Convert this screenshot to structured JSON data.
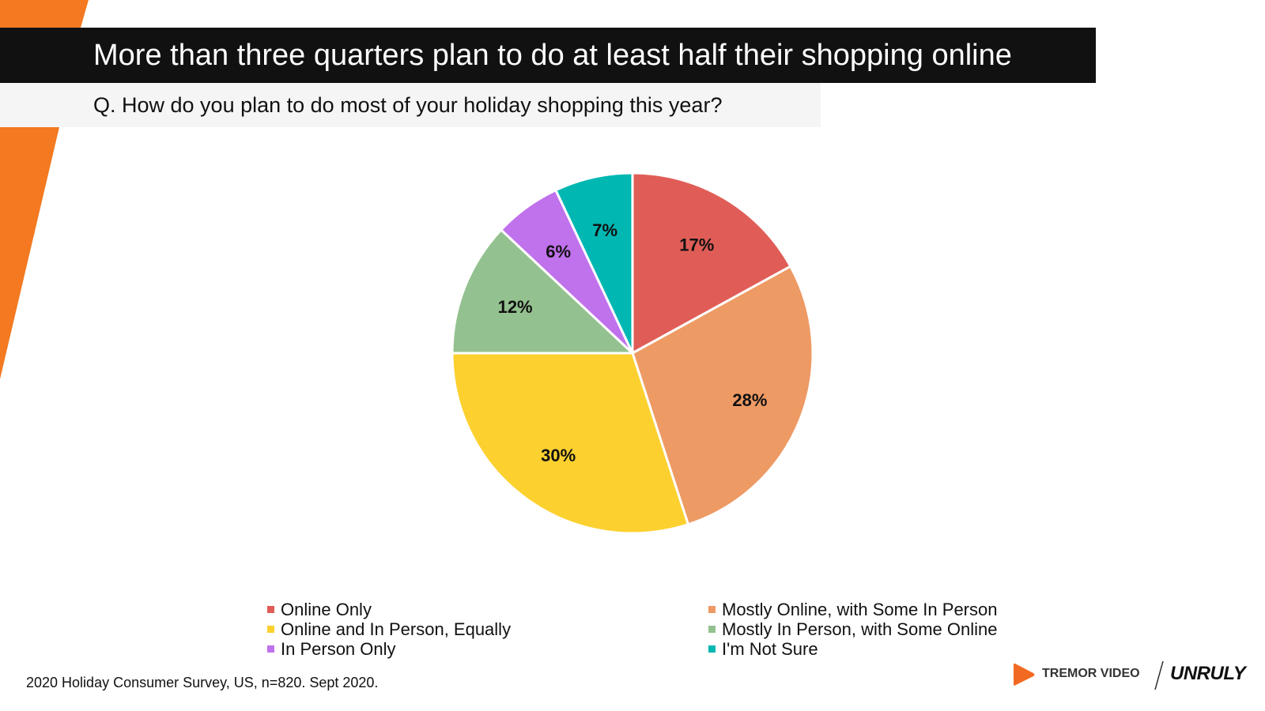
{
  "header": {
    "title": "More than three quarters plan to do at least half their shopping online",
    "subtitle": "Q. How do you plan to do most of your holiday shopping this year?"
  },
  "footnote": "2020 Holiday Consumer Survey, US, n=820. Sept 2020.",
  "logos": {
    "tremor": "TREMOR VIDEO",
    "unruly": "UNRULY"
  },
  "colors": {
    "accent": "#F47920",
    "title_bar": "#111111"
  },
  "chart_data": {
    "type": "pie",
    "title": "",
    "slices": [
      {
        "label": "Online Only",
        "value": 17,
        "display": "17%",
        "color": "#E05D57"
      },
      {
        "label": "Mostly Online, with Some In Person",
        "value": 28,
        "display": "28%",
        "color": "#EE9A64"
      },
      {
        "label": "Online and In Person, Equally",
        "value": 30,
        "display": "30%",
        "color": "#FCD02F"
      },
      {
        "label": "Mostly In Person, with Some Online",
        "value": 12,
        "display": "12%",
        "color": "#93C18F"
      },
      {
        "label": "In Person Only",
        "value": 6,
        "display": "6%",
        "color": "#C071EC"
      },
      {
        "label": "I'm Not Sure",
        "value": 7,
        "display": "7%",
        "color": "#00B7B2"
      }
    ],
    "legend": {
      "placement": "bottom",
      "items": [
        {
          "label": "Online Only",
          "color": "#E05D57"
        },
        {
          "label": "Mostly Online, with Some In Person",
          "color": "#EE9A64"
        },
        {
          "label": "Online and In Person, Equally",
          "color": "#FCD02F"
        },
        {
          "label": "Mostly In Person, with Some Online",
          "color": "#93C18F"
        },
        {
          "label": "In Person Only",
          "color": "#C071EC"
        },
        {
          "label": "I'm Not Sure",
          "color": "#00B7B2"
        }
      ]
    }
  }
}
